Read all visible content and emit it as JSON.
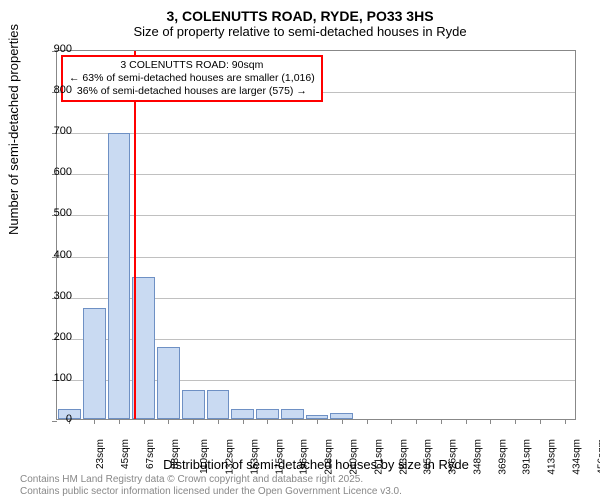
{
  "title": "3, COLENUTTS ROAD, RYDE, PO33 3HS",
  "subtitle": "Size of property relative to semi-detached houses in Ryde",
  "ylabel": "Number of semi-detached properties",
  "xlabel": "Distribution of semi-detached houses by size in Ryde",
  "footer_line1": "Contains HM Land Registry data © Crown copyright and database right 2025.",
  "footer_line2": "Contains public sector information licensed under the Open Government Licence v3.0.",
  "chart": {
    "type": "bar",
    "ylim": [
      0,
      900
    ],
    "ytick_step": 100,
    "background_color": "#ffffff",
    "grid_color": "#c0c0c0",
    "bar_fill": "#c9daf2",
    "bar_stroke": "#6e90c4",
    "marker_color": "#ff0000",
    "categories": [
      "23sqm",
      "45sqm",
      "67sqm",
      "88sqm",
      "110sqm",
      "132sqm",
      "153sqm",
      "175sqm",
      "196sqm",
      "218sqm",
      "240sqm",
      "261sqm",
      "283sqm",
      "305sqm",
      "326sqm",
      "348sqm",
      "369sqm",
      "391sqm",
      "413sqm",
      "434sqm",
      "456sqm"
    ],
    "values": [
      25,
      270,
      695,
      345,
      175,
      70,
      70,
      25,
      25,
      25,
      10,
      15,
      0,
      0,
      0,
      0,
      0,
      0,
      0,
      0,
      0
    ],
    "marker_position": 3.1,
    "annotation": {
      "line1": "3 COLENUTTS ROAD: 90sqm",
      "line2": "← 63% of semi-detached houses are smaller (1,016)",
      "line3": "36% of semi-detached houses are larger (575) →"
    },
    "yticks": [
      0,
      100,
      200,
      300,
      400,
      500,
      600,
      700,
      800,
      900
    ]
  }
}
